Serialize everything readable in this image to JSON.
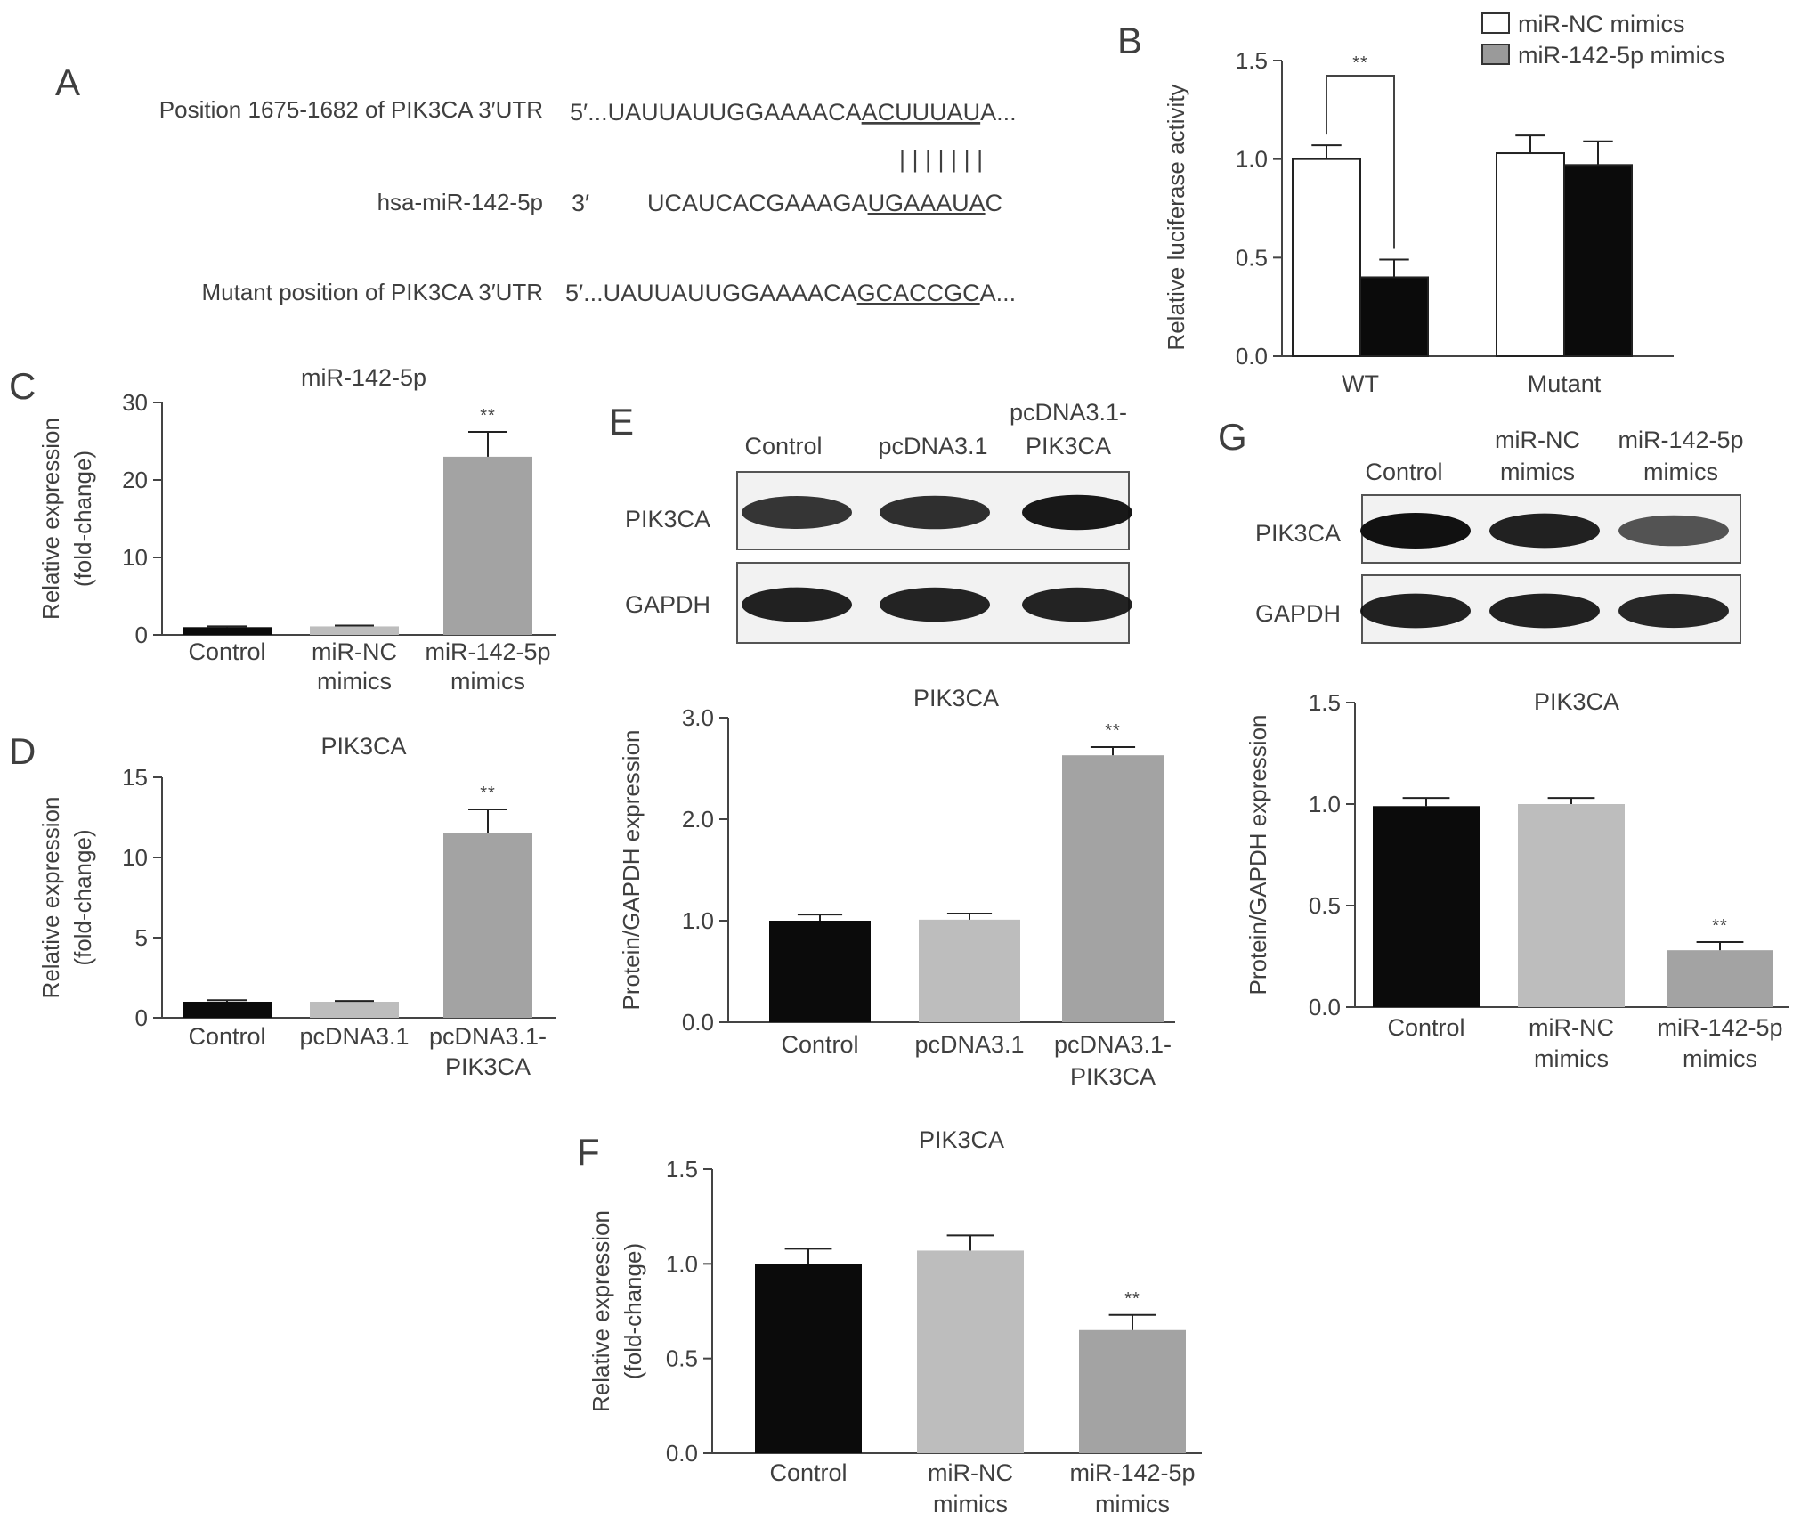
{
  "panel_letters": {
    "A": "A",
    "B": "B",
    "C": "C",
    "D": "D",
    "E": "E",
    "F": "F",
    "G": "G"
  },
  "panel_a": {
    "row1_label": "Position 1675-1682 of PIK3CA 3′UTR",
    "row1_prefix": "5′...UAUUAUUGGAAAACA",
    "row1_site": "ACUUUAU",
    "row1_suffix": "A...",
    "row2_label": "hsa-miR-142-5p",
    "row2_end": "3′",
    "row2_prefix": "UCAUCACGAAAGA",
    "row2_site": "UGAAAUA",
    "row2_suffix": "C",
    "pair_lines": "| | | | | | |",
    "row3_label": "Mutant position of PIK3CA 3′UTR",
    "row3_prefix": "5′...UAUUAUUGGAAAACA",
    "row3_site": "GCACCGC",
    "row3_suffix": "A..."
  },
  "blot_e": {
    "columns": [
      "Control",
      "pcDNA3.1",
      "pcDNA3.1-",
      "PIK3CA"
    ],
    "rows": [
      "PIK3CA",
      "GAPDH"
    ],
    "band_intensity": {
      "PIK3CA": [
        0.75,
        0.8,
        0.95
      ],
      "GAPDH": [
        0.9,
        0.88,
        0.88
      ]
    }
  },
  "blot_g": {
    "columns": [
      "Control",
      "miR-NC",
      "mimics",
      "miR-142-5p",
      "mimics"
    ],
    "rows": [
      "PIK3CA",
      "GAPDH"
    ],
    "band_intensity": {
      "PIK3CA": [
        1.0,
        0.9,
        0.55
      ],
      "GAPDH": [
        0.9,
        0.9,
        0.85
      ]
    }
  },
  "colors": {
    "black": "#0b0b0b",
    "light_gray": "#bdbdbd",
    "mid_gray": "#a3a3a3",
    "white": "#ffffff",
    "legend_gray": "#9a9a9a"
  },
  "chart_data": [
    {
      "id": "B",
      "type": "bar",
      "ylabel": "Relative luciferase activity",
      "ylim": [
        0,
        1.5
      ],
      "yticks": [
        "0.0",
        "0.5",
        "1.0",
        "1.5"
      ],
      "categories": [
        "WT",
        "Mutant"
      ],
      "legend": [
        "miR-NC mimics",
        "miR-142-5p mimics"
      ],
      "legend_position": "top-right",
      "series": [
        {
          "name": "miR-NC mimics",
          "values": [
            1.0,
            1.03
          ],
          "errors": [
            0.07,
            0.09
          ],
          "color": "#ffffff"
        },
        {
          "name": "miR-142-5p mimics",
          "values": [
            0.4,
            0.97
          ],
          "errors": [
            0.09,
            0.12
          ],
          "color": "#0b0b0b"
        }
      ],
      "significance": "**"
    },
    {
      "id": "C",
      "type": "bar",
      "title": "miR-142-5p",
      "ylabel": [
        "Relative expression",
        "(fold-change)"
      ],
      "ylim": [
        0,
        30
      ],
      "yticks": [
        "0",
        "10",
        "20",
        "30"
      ],
      "categories": [
        [
          "Control"
        ],
        [
          "miR-NC",
          "mimics"
        ],
        [
          "miR-142-5p",
          "mimics"
        ]
      ],
      "values": [
        1.0,
        1.1,
        23.0
      ],
      "errors": [
        0.1,
        0.1,
        3.2
      ],
      "colors": [
        "#0b0b0b",
        "#bdbdbd",
        "#a3a3a3"
      ],
      "significance": [
        "",
        "",
        "**"
      ]
    },
    {
      "id": "D",
      "type": "bar",
      "title": "PIK3CA",
      "ylabel": [
        "Relative expression",
        "(fold-change)"
      ],
      "ylim": [
        0,
        15
      ],
      "yticks": [
        "0",
        "5",
        "10",
        "15"
      ],
      "categories": [
        [
          "Control"
        ],
        [
          "pcDNA3.1"
        ],
        [
          "pcDNA3.1-",
          "PIK3CA"
        ]
      ],
      "values": [
        1.0,
        1.0,
        11.5
      ],
      "errors": [
        0.1,
        0.05,
        1.5
      ],
      "colors": [
        "#0b0b0b",
        "#bdbdbd",
        "#a3a3a3"
      ],
      "significance": [
        "",
        "",
        "**"
      ]
    },
    {
      "id": "E",
      "type": "bar",
      "title": "PIK3CA",
      "ylabel": [
        "Protein/GAPDH expression"
      ],
      "ylim": [
        0,
        3.0
      ],
      "yticks": [
        "0.0",
        "1.0",
        "2.0",
        "3.0"
      ],
      "categories": [
        [
          "Control"
        ],
        [
          "pcDNA3.1"
        ],
        [
          "pcDNA3.1-",
          "PIK3CA"
        ]
      ],
      "values": [
        1.0,
        1.01,
        2.63
      ],
      "errors": [
        0.06,
        0.06,
        0.08
      ],
      "colors": [
        "#0b0b0b",
        "#bdbdbd",
        "#a3a3a3"
      ],
      "significance": [
        "",
        "",
        "**"
      ]
    },
    {
      "id": "F",
      "type": "bar",
      "title": "PIK3CA",
      "ylabel": [
        "Relative expression",
        "(fold-change)"
      ],
      "ylim": [
        0,
        1.5
      ],
      "yticks": [
        "0.0",
        "0.5",
        "1.0",
        "1.5"
      ],
      "categories": [
        [
          "Control"
        ],
        [
          "miR-NC",
          "mimics"
        ],
        [
          "miR-142-5p",
          "mimics"
        ]
      ],
      "values": [
        1.0,
        1.07,
        0.65
      ],
      "errors": [
        0.08,
        0.08,
        0.08
      ],
      "colors": [
        "#0b0b0b",
        "#bdbdbd",
        "#a3a3a3"
      ],
      "significance": [
        "",
        "",
        "**"
      ]
    },
    {
      "id": "G",
      "type": "bar",
      "title": "PIK3CA",
      "ylabel": [
        "Protein/GAPDH expression"
      ],
      "ylim": [
        0,
        1.5
      ],
      "yticks": [
        "0.0",
        "0.5",
        "1.0",
        "1.5"
      ],
      "categories": [
        [
          "Control"
        ],
        [
          "miR-NC",
          "mimics"
        ],
        [
          "miR-142-5p",
          "mimics"
        ]
      ],
      "values": [
        0.99,
        1.0,
        0.28
      ],
      "errors": [
        0.04,
        0.03,
        0.04
      ],
      "colors": [
        "#0b0b0b",
        "#bdbdbd",
        "#a3a3a3"
      ],
      "significance": [
        "",
        "",
        "**"
      ]
    }
  ]
}
